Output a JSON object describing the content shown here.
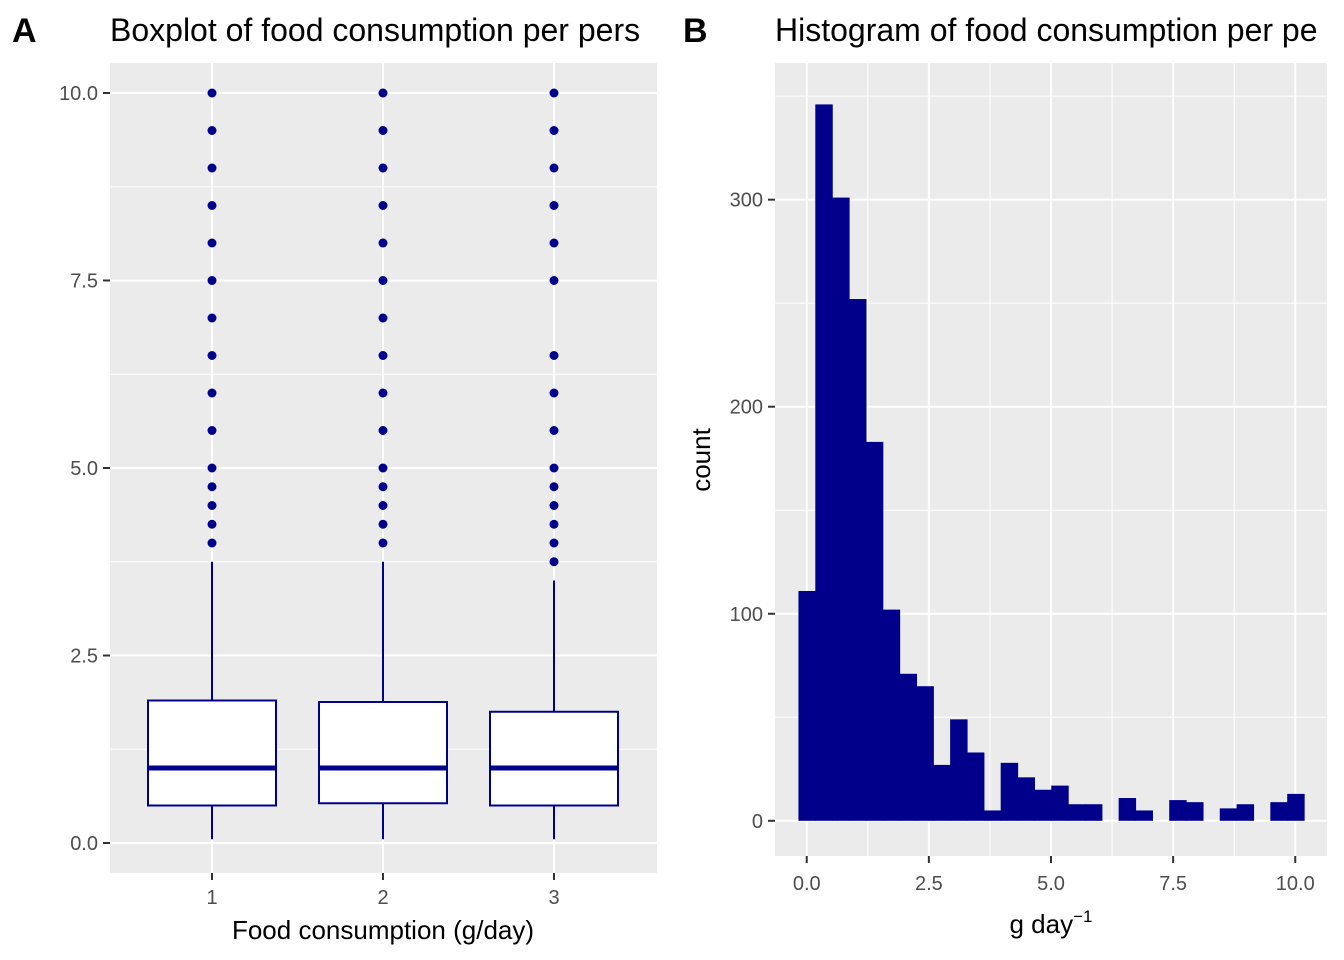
{
  "colors": {
    "fill": "#00008b",
    "panel_bg": "#ebebeb",
    "grid": "#ffffff",
    "box_fill": "#ffffff",
    "tick_text": "#4d4d4d"
  },
  "chart_data": [
    {
      "panel_tag": "A",
      "type": "boxplot",
      "title": "Boxplot of food consumption per pers",
      "xlabel": "Food consumption (g/day)",
      "ylabel": "",
      "categories": [
        "1",
        "2",
        "3"
      ],
      "ylim": [
        -0.4,
        10.4
      ],
      "yticks": [
        0.0,
        2.5,
        5.0,
        7.5,
        10.0
      ],
      "ytick_labels": [
        "0.0",
        "2.5",
        "5.0",
        "7.5",
        "10.0"
      ],
      "grid": true,
      "boxes": [
        {
          "category": "1",
          "min": 0.05,
          "q1": 0.5,
          "median": 1.0,
          "q3": 1.9,
          "max": 3.75,
          "outliers": [
            4.0,
            4.25,
            4.5,
            4.75,
            5.0,
            5.5,
            6.0,
            6.5,
            7.0,
            7.5,
            8.0,
            8.5,
            9.0,
            9.5,
            10.0
          ]
        },
        {
          "category": "2",
          "min": 0.05,
          "q1": 0.53,
          "median": 1.0,
          "q3": 1.88,
          "max": 3.75,
          "outliers": [
            4.0,
            4.25,
            4.5,
            4.75,
            5.0,
            5.5,
            6.0,
            6.5,
            7.0,
            7.5,
            8.0,
            8.5,
            9.0,
            9.5,
            10.0
          ]
        },
        {
          "category": "3",
          "min": 0.05,
          "q1": 0.5,
          "median": 1.0,
          "q3": 1.75,
          "max": 3.5,
          "outliers": [
            3.75,
            4.0,
            4.25,
            4.5,
            4.75,
            5.0,
            5.5,
            6.0,
            6.5,
            7.5,
            8.0,
            8.5,
            9.0,
            9.5,
            10.0
          ]
        }
      ]
    },
    {
      "panel_tag": "B",
      "type": "histogram",
      "title": "Histogram of food consumption per pe",
      "xlabel_main": "g day",
      "xlabel_sup": "−1",
      "ylabel": "count",
      "xlim": [
        -0.65,
        10.65
      ],
      "ylim": [
        -17,
        366
      ],
      "xticks": [
        0.0,
        2.5,
        5.0,
        7.5,
        10.0
      ],
      "xtick_labels": [
        "0.0",
        "2.5",
        "5.0",
        "7.5",
        "10.0"
      ],
      "yticks": [
        0,
        100,
        200,
        300
      ],
      "ytick_labels": [
        "0",
        "100",
        "200",
        "300"
      ],
      "grid": true,
      "binwidth": 0.345,
      "bin_start": -0.17,
      "counts": [
        111,
        346,
        301,
        252,
        183,
        102,
        71,
        65,
        27,
        49,
        33,
        5,
        28,
        21,
        15,
        17,
        8,
        8,
        0,
        11,
        5,
        0,
        10,
        9,
        0,
        6,
        8,
        0,
        9,
        13
      ]
    }
  ]
}
